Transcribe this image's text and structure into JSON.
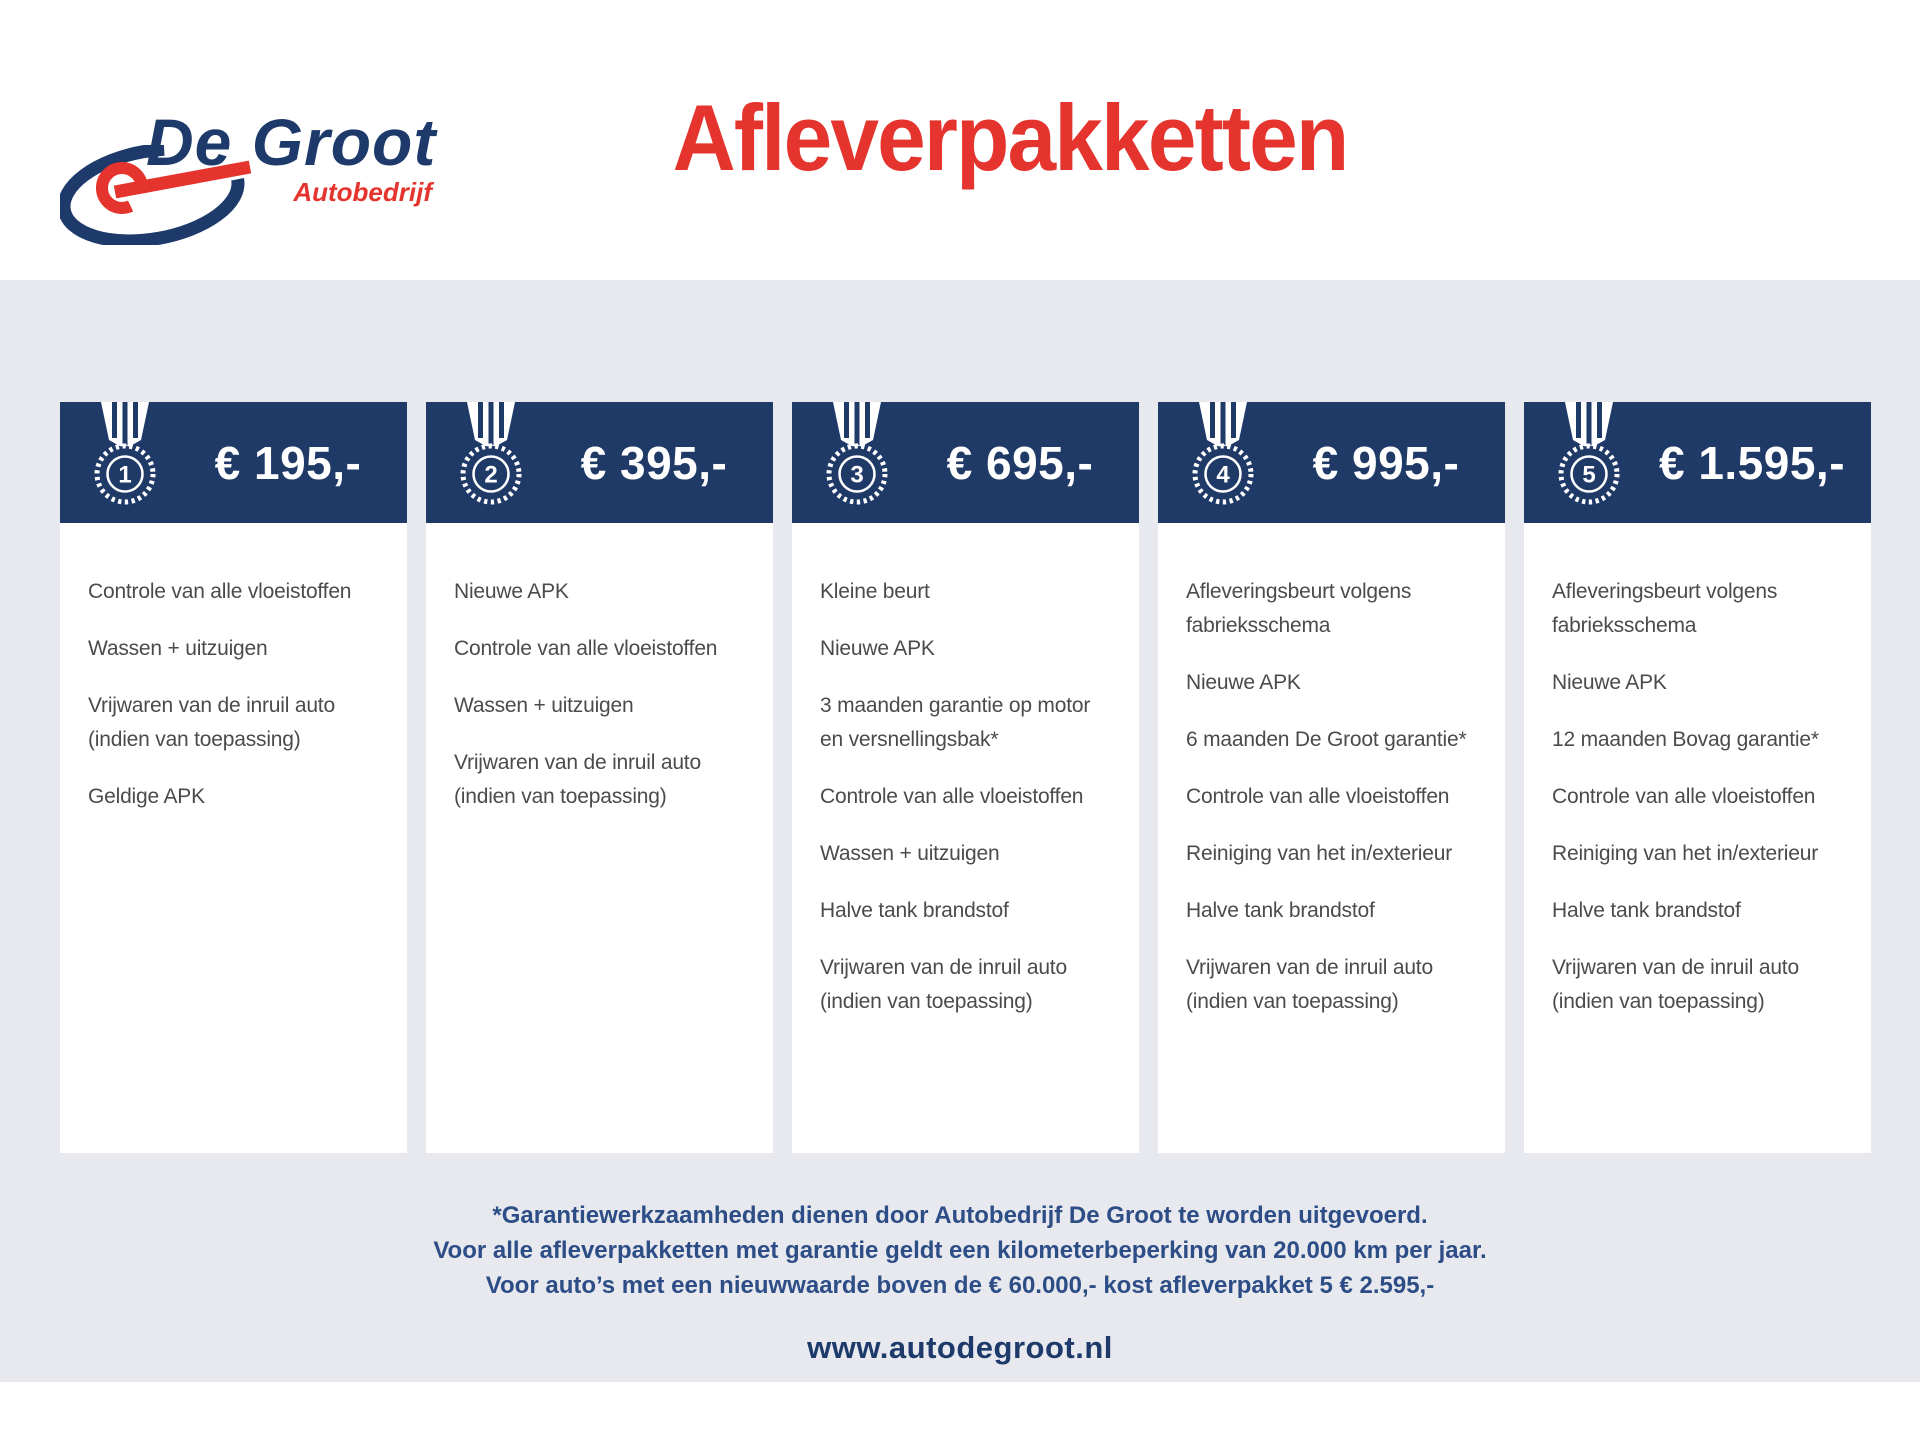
{
  "logo": {
    "name": "De Groot",
    "subtitle": "Autobedrijf"
  },
  "title": "Afleverpakketten",
  "packages": [
    {
      "number": "1",
      "price": "€ 195,-",
      "items": [
        "Controle van alle vloeistoffen",
        "Wassen + uitzuigen",
        "Vrijwaren van de inruil auto (indien van toepassing)",
        "Geldige APK"
      ]
    },
    {
      "number": "2",
      "price": "€ 395,-",
      "items": [
        "Nieuwe APK",
        "Controle van alle vloeistoffen",
        "Wassen + uitzuigen",
        "Vrijwaren van de inruil auto (indien van toepassing)"
      ]
    },
    {
      "number": "3",
      "price": "€ 695,-",
      "items": [
        "Kleine beurt",
        "Nieuwe APK",
        "3 maanden garantie op motor en versnellingsbak*",
        "Controle van alle vloeistoffen",
        "Wassen + uitzuigen",
        "Halve tank brandstof",
        "Vrijwaren van de inruil auto (indien van toepassing)"
      ]
    },
    {
      "number": "4",
      "price": "€ 995,-",
      "items": [
        "Afleveringsbeurt volgens fabrieksschema",
        "Nieuwe APK",
        "6 maanden De Groot garantie*",
        "Controle van alle vloeistoffen",
        "Reiniging van het in/exterieur",
        "Halve tank brandstof",
        "Vrijwaren van de inruil auto (indien van toepassing)"
      ]
    },
    {
      "number": "5",
      "price": "€ 1.595,-",
      "items": [
        "Afleveringsbeurt volgens fabrieksschema",
        "Nieuwe APK",
        "12 maanden Bovag garantie*",
        "Controle van alle vloeistoffen",
        "Reiniging van het in/exterieur",
        "Halve tank brandstof",
        "Vrijwaren van de inruil auto (indien van toepassing)"
      ]
    }
  ],
  "footnotes": [
    "*Garantiewerkzaamheden dienen door Autobedrijf De Groot te worden uitgevoerd.",
    "Voor alle afleverpakketten met garantie geldt een kilometerbeperking van 20.000 km per jaar.",
    "Voor auto’s met een nieuwwaarde boven de € 60.000,- kost afleverpakket 5 € 2.595,-"
  ],
  "website": "www.autodegroot.nl",
  "colors": {
    "navy": "#203a68",
    "logo_navy": "#1d3a6b",
    "red": "#e5332d",
    "band_gray": "#e8e9ef",
    "body_text": "#4b4b4b",
    "footnote_navy": "#2d4d86"
  }
}
